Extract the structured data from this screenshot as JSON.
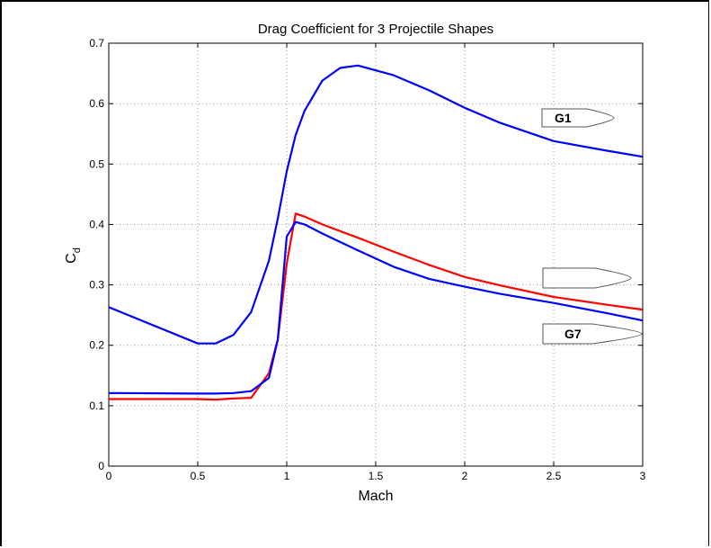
{
  "chart_data": {
    "type": "line",
    "title": "Drag Coefficient for 3 Projectile Shapes",
    "xlabel": "Mach",
    "ylabel_main": "C",
    "ylabel_sub": "d",
    "xlim": [
      0,
      3
    ],
    "ylim": [
      0,
      0.7
    ],
    "xticks": [
      0,
      0.5,
      1,
      1.5,
      2,
      2.5,
      3
    ],
    "xtick_labels": [
      "0",
      "0.5",
      "1",
      "1.5",
      "2",
      "2.5",
      "3"
    ],
    "yticks": [
      0,
      0.1,
      0.2,
      0.3,
      0.4,
      0.5,
      0.6,
      0.7
    ],
    "ytick_labels": [
      "0",
      "0.1",
      "0.2",
      "0.3",
      "0.4",
      "0.5",
      "0.6",
      "0.7"
    ],
    "grid": true,
    "series": [
      {
        "color": "#0000ff",
        "x": [
          0,
          0.5,
          0.6,
          0.7,
          0.8,
          0.9,
          0.95,
          1.0,
          1.05,
          1.1,
          1.2,
          1.3,
          1.4,
          1.6,
          1.8,
          2.0,
          2.2,
          2.5,
          2.8,
          3.0
        ],
        "y": [
          0.263,
          0.203,
          0.203,
          0.217,
          0.255,
          0.34,
          0.41,
          0.488,
          0.548,
          0.588,
          0.638,
          0.659,
          0.663,
          0.647,
          0.622,
          0.593,
          0.568,
          0.538,
          0.522,
          0.512
        ]
      },
      {
        "color": "#ff0000",
        "x": [
          0,
          0.5,
          0.6,
          0.7,
          0.8,
          0.9,
          0.95,
          1.0,
          1.05,
          1.1,
          1.2,
          1.4,
          1.6,
          1.8,
          2.0,
          2.2,
          2.5,
          2.8,
          3.0
        ],
        "y": [
          0.111,
          0.111,
          0.11,
          0.112,
          0.113,
          0.154,
          0.21,
          0.335,
          0.418,
          0.413,
          0.4,
          0.378,
          0.355,
          0.333,
          0.313,
          0.299,
          0.28,
          0.267,
          0.259
        ]
      },
      {
        "color": "#0000ff",
        "x": [
          0,
          0.5,
          0.6,
          0.7,
          0.8,
          0.9,
          0.95,
          1.0,
          1.05,
          1.1,
          1.2,
          1.4,
          1.6,
          1.8,
          2.0,
          2.2,
          2.5,
          2.8,
          3.0
        ],
        "y": [
          0.121,
          0.12,
          0.12,
          0.121,
          0.124,
          0.146,
          0.21,
          0.38,
          0.404,
          0.4,
          0.385,
          0.357,
          0.33,
          0.31,
          0.297,
          0.285,
          0.27,
          0.253,
          0.241
        ]
      }
    ],
    "annotations": [
      {
        "label": "G1",
        "shape": "g1-projectile"
      },
      {
        "label": "",
        "shape": "g-middle-projectile"
      },
      {
        "label": "G7",
        "shape": "g7-projectile"
      }
    ]
  }
}
